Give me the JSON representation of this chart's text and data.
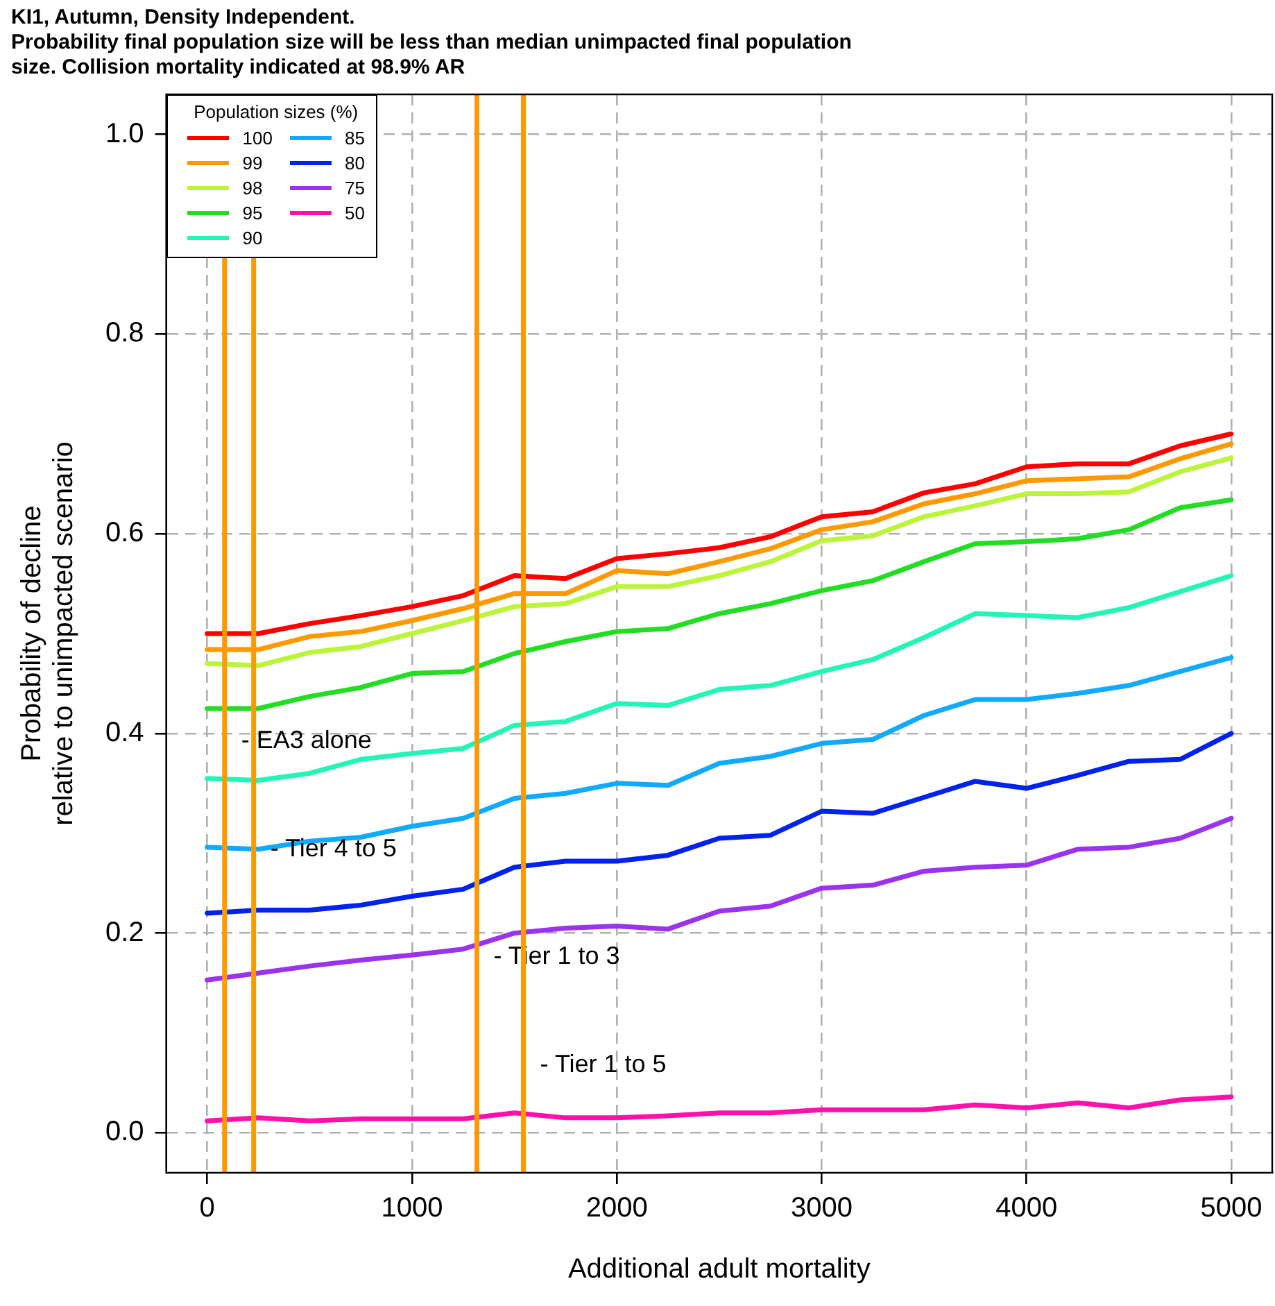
{
  "chart_data": {
    "type": "line",
    "title": "KI1, Autumn, Density Independent.",
    "subtitle": "Probability final population size will be less than median unimpacted final population size. Collision mortality indicated at 98.9% AR",
    "xlabel": "Additional adult mortality",
    "ylabel": "Probability of decline\nrelative to unimpacted scenario",
    "legend_title": "Population sizes (%)",
    "x": [
      0,
      250,
      500,
      750,
      1000,
      1250,
      1500,
      1750,
      2000,
      2250,
      2500,
      2750,
      3000,
      3250,
      3500,
      3750,
      4000,
      4250,
      4500,
      4750,
      5000
    ],
    "series": [
      {
        "name": "100",
        "color": "#ff0000",
        "values": [
          0.5,
          0.5,
          0.51,
          0.518,
          0.527,
          0.538,
          0.558,
          0.555,
          0.575,
          0.58,
          0.586,
          0.597,
          0.617,
          0.622,
          0.641,
          0.65,
          0.667,
          0.67,
          0.67,
          0.688,
          0.7
        ]
      },
      {
        "name": "99",
        "color": "#ff9900",
        "values": [
          0.484,
          0.484,
          0.497,
          0.502,
          0.513,
          0.525,
          0.54,
          0.54,
          0.563,
          0.56,
          0.572,
          0.585,
          0.604,
          0.612,
          0.63,
          0.64,
          0.653,
          0.655,
          0.657,
          0.675,
          0.69
        ]
      },
      {
        "name": "98",
        "color": "#bbf53a",
        "values": [
          0.47,
          0.468,
          0.481,
          0.487,
          0.5,
          0.513,
          0.527,
          0.53,
          0.547,
          0.547,
          0.558,
          0.572,
          0.593,
          0.598,
          0.617,
          0.628,
          0.64,
          0.64,
          0.642,
          0.662,
          0.676
        ]
      },
      {
        "name": "95",
        "color": "#22dd22",
        "values": [
          0.425,
          0.425,
          0.437,
          0.446,
          0.46,
          0.462,
          0.48,
          0.492,
          0.502,
          0.505,
          0.52,
          0.53,
          0.543,
          0.553,
          0.572,
          0.59,
          0.592,
          0.595,
          0.604,
          0.626,
          0.634
        ]
      },
      {
        "name": "90",
        "color": "#22f5b5",
        "values": [
          0.355,
          0.353,
          0.36,
          0.374,
          0.38,
          0.385,
          0.408,
          0.412,
          0.43,
          0.428,
          0.444,
          0.448,
          0.462,
          0.474,
          0.496,
          0.52,
          0.518,
          0.516,
          0.526,
          0.542,
          0.558
        ]
      },
      {
        "name": "85",
        "color": "#11aaff",
        "values": [
          0.286,
          0.284,
          0.292,
          0.296,
          0.307,
          0.315,
          0.335,
          0.34,
          0.35,
          0.348,
          0.37,
          0.377,
          0.39,
          0.394,
          0.418,
          0.434,
          0.434,
          0.44,
          0.448,
          0.462,
          0.476
        ]
      },
      {
        "name": "80",
        "color": "#0022ee",
        "values": [
          0.22,
          0.223,
          0.223,
          0.228,
          0.237,
          0.244,
          0.266,
          0.272,
          0.272,
          0.278,
          0.295,
          0.298,
          0.322,
          0.32,
          0.336,
          0.352,
          0.345,
          0.358,
          0.372,
          0.374,
          0.4
        ]
      },
      {
        "name": "75",
        "color": "#9933ee",
        "values": [
          0.153,
          0.16,
          0.167,
          0.173,
          0.178,
          0.184,
          0.2,
          0.205,
          0.207,
          0.204,
          0.222,
          0.227,
          0.245,
          0.248,
          0.262,
          0.266,
          0.268,
          0.284,
          0.286,
          0.295,
          0.315
        ]
      },
      {
        "name": "50",
        "color": "#ff11aa",
        "values": [
          0.012,
          0.015,
          0.012,
          0.014,
          0.014,
          0.014,
          0.02,
          0.015,
          0.015,
          0.017,
          0.02,
          0.02,
          0.023,
          0.023,
          0.023,
          0.028,
          0.025,
          0.03,
          0.025,
          0.033,
          0.036
        ]
      }
    ],
    "ref_lines": [
      {
        "axis": "x",
        "value": 85,
        "label": "- EA3 alone",
        "color": "#ff9900"
      },
      {
        "axis": "x",
        "value": 227,
        "label": "- Tier 4 to 5",
        "color": "#ff9900"
      },
      {
        "axis": "x",
        "value": 1317,
        "label": "- Tier 1 to 3",
        "color": "#ff9900"
      },
      {
        "axis": "x",
        "value": 1544,
        "label": "- Tier 1 to 5",
        "color": "#ff9900"
      }
    ],
    "xlim": [
      -200,
      5200
    ],
    "xticks": [
      0,
      1000,
      2000,
      3000,
      4000,
      5000
    ],
    "ylim": [
      -0.04,
      1.04
    ],
    "yticks": [
      {
        "value": 0,
        "label": "0.0"
      },
      {
        "value": 0.2,
        "label": "0.2"
      },
      {
        "value": 0.4,
        "label": "0.4"
      },
      {
        "value": 0.6,
        "label": "0.6"
      },
      {
        "value": 0.8,
        "label": "0.8"
      },
      {
        "value": 1,
        "label": "1.0"
      }
    ],
    "grid": true,
    "legend": "top left",
    "marker": "none",
    "line_style": "solid"
  }
}
